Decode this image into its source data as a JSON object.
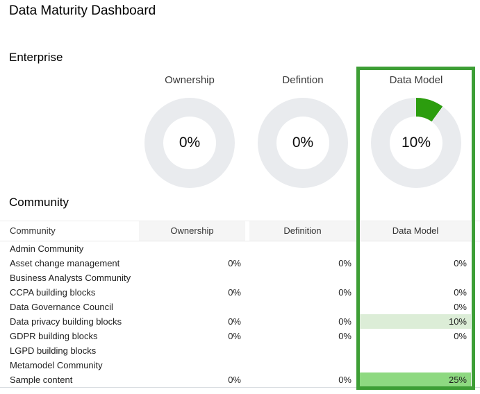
{
  "title": "Data Maturity Dashboard",
  "colors": {
    "donut_ring": "#e9ebee",
    "donut_slice": "#2c9d0e",
    "highlight_border": "#3d9e35",
    "header_bg": "#f5f5f5",
    "cell_highlight_light": "#dcedd7",
    "cell_highlight_strong": "#8ed981"
  },
  "enterprise": {
    "heading": "Enterprise",
    "donuts": [
      {
        "label": "Ownership",
        "value": "0%",
        "percent": 0,
        "highlighted": false
      },
      {
        "label": "Defintion",
        "value": "0%",
        "percent": 0,
        "highlighted": false
      },
      {
        "label": "Data Model",
        "value": "10%",
        "percent": 10,
        "highlighted": true
      }
    ]
  },
  "community": {
    "heading": "Community",
    "columns": [
      "Community",
      "Ownership",
      "Definition",
      "Data Model"
    ],
    "rows": [
      {
        "name": "Admin Community",
        "ownership": "",
        "definition": "",
        "data_model": "",
        "dm_highlight": "none"
      },
      {
        "name": "Asset change management",
        "ownership": "0%",
        "definition": "0%",
        "data_model": "0%",
        "dm_highlight": "none"
      },
      {
        "name": "Business Analysts Community",
        "ownership": "",
        "definition": "",
        "data_model": "",
        "dm_highlight": "none"
      },
      {
        "name": "CCPA building blocks",
        "ownership": "0%",
        "definition": "0%",
        "data_model": "0%",
        "dm_highlight": "none"
      },
      {
        "name": "Data Governance Council",
        "ownership": "",
        "definition": "",
        "data_model": "0%",
        "dm_highlight": "none"
      },
      {
        "name": "Data privacy building blocks",
        "ownership": "0%",
        "definition": "0%",
        "data_model": "10%",
        "dm_highlight": "light"
      },
      {
        "name": "GDPR building blocks",
        "ownership": "0%",
        "definition": "0%",
        "data_model": "0%",
        "dm_highlight": "none"
      },
      {
        "name": "LGPD building blocks",
        "ownership": "",
        "definition": "",
        "data_model": "",
        "dm_highlight": "none"
      },
      {
        "name": "Metamodel Community",
        "ownership": "",
        "definition": "",
        "data_model": "",
        "dm_highlight": "none"
      },
      {
        "name": "Sample content",
        "ownership": "0%",
        "definition": "0%",
        "data_model": "25%",
        "dm_highlight": "strong"
      }
    ]
  }
}
